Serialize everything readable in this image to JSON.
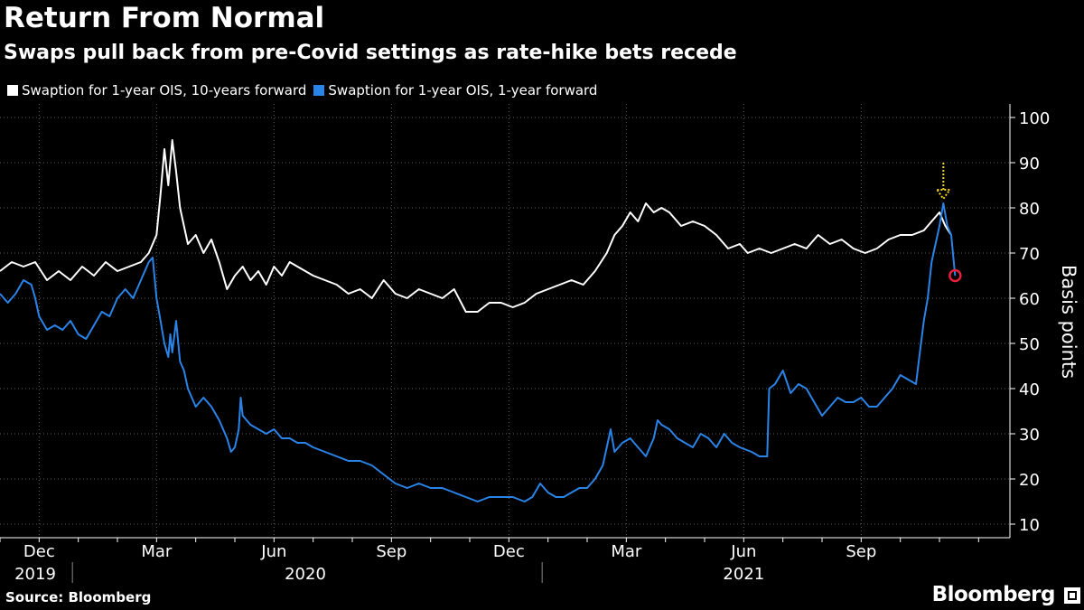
{
  "title": "Return From Normal",
  "subtitle": "Swaps pull back from pre-Covid settings as rate-hike bets recede",
  "source": "Source: Bloomberg",
  "brand": "Bloomberg",
  "colors": {
    "series1": "#ffffff",
    "series2": "#2a84e8",
    "marker": "#e8203a",
    "arrow": "#f5d21c"
  },
  "chart_data": {
    "type": "line",
    "title": "Return From Normal",
    "subtitle": "Swaps pull back from pre-Covid settings as rate-hike bets recede",
    "ylabel": "Basis points",
    "xlabel": "",
    "ylim": [
      10,
      100
    ],
    "yticks": [
      10,
      20,
      30,
      40,
      50,
      60,
      70,
      80,
      90,
      100
    ],
    "xlim": [
      0,
      25.8
    ],
    "xticks": [
      {
        "x": 1.0,
        "label": "Dec"
      },
      {
        "x": 4.0,
        "label": "Mar"
      },
      {
        "x": 7.0,
        "label": "Jun"
      },
      {
        "x": 10.0,
        "label": "Sep"
      },
      {
        "x": 13.0,
        "label": "Dec"
      },
      {
        "x": 16.0,
        "label": "Mar"
      },
      {
        "x": 19.0,
        "label": "Jun"
      },
      {
        "x": 22.0,
        "label": "Sep"
      }
    ],
    "year_labels": [
      {
        "x": 0.9,
        "label": "2019"
      },
      {
        "x": 7.8,
        "label": "2020"
      },
      {
        "x": 19.0,
        "label": "2021"
      }
    ],
    "year_dividers": [
      1.85,
      13.85
    ],
    "grid": true,
    "legend_position": "top-left",
    "series": [
      {
        "name": "Swaption for 1-year OIS, 10-years forward",
        "points": [
          [
            0,
            66
          ],
          [
            0.3,
            68
          ],
          [
            0.6,
            67
          ],
          [
            0.9,
            68
          ],
          [
            1.2,
            64
          ],
          [
            1.5,
            66
          ],
          [
            1.8,
            64
          ],
          [
            2.1,
            67
          ],
          [
            2.4,
            65
          ],
          [
            2.7,
            68
          ],
          [
            3.0,
            66
          ],
          [
            3.3,
            67
          ],
          [
            3.6,
            68
          ],
          [
            3.8,
            70
          ],
          [
            4.0,
            74
          ],
          [
            4.1,
            83
          ],
          [
            4.2,
            93
          ],
          [
            4.3,
            85
          ],
          [
            4.4,
            95
          ],
          [
            4.5,
            88
          ],
          [
            4.6,
            80
          ],
          [
            4.8,
            72
          ],
          [
            5.0,
            74
          ],
          [
            5.2,
            70
          ],
          [
            5.4,
            73
          ],
          [
            5.6,
            68
          ],
          [
            5.8,
            62
          ],
          [
            6.0,
            65
          ],
          [
            6.2,
            67
          ],
          [
            6.4,
            64
          ],
          [
            6.6,
            66
          ],
          [
            6.8,
            63
          ],
          [
            7.0,
            67
          ],
          [
            7.2,
            65
          ],
          [
            7.4,
            68
          ],
          [
            7.6,
            67
          ],
          [
            7.8,
            66
          ],
          [
            8.0,
            65
          ],
          [
            8.3,
            64
          ],
          [
            8.6,
            63
          ],
          [
            8.9,
            61
          ],
          [
            9.2,
            62
          ],
          [
            9.5,
            60
          ],
          [
            9.8,
            64
          ],
          [
            10.1,
            61
          ],
          [
            10.4,
            60
          ],
          [
            10.7,
            62
          ],
          [
            11.0,
            61
          ],
          [
            11.3,
            60
          ],
          [
            11.6,
            62
          ],
          [
            11.9,
            57
          ],
          [
            12.2,
            57
          ],
          [
            12.5,
            59
          ],
          [
            12.8,
            59
          ],
          [
            13.1,
            58
          ],
          [
            13.4,
            59
          ],
          [
            13.7,
            61
          ],
          [
            14.0,
            62
          ],
          [
            14.3,
            63
          ],
          [
            14.6,
            64
          ],
          [
            14.9,
            63
          ],
          [
            15.2,
            66
          ],
          [
            15.5,
            70
          ],
          [
            15.7,
            74
          ],
          [
            15.9,
            76
          ],
          [
            16.1,
            79
          ],
          [
            16.3,
            77
          ],
          [
            16.5,
            81
          ],
          [
            16.7,
            79
          ],
          [
            16.9,
            80
          ],
          [
            17.1,
            79
          ],
          [
            17.4,
            76
          ],
          [
            17.7,
            77
          ],
          [
            18.0,
            76
          ],
          [
            18.3,
            74
          ],
          [
            18.6,
            71
          ],
          [
            18.9,
            72
          ],
          [
            19.1,
            70
          ],
          [
            19.4,
            71
          ],
          [
            19.7,
            70
          ],
          [
            20.0,
            71
          ],
          [
            20.3,
            72
          ],
          [
            20.6,
            71
          ],
          [
            20.9,
            74
          ],
          [
            21.2,
            72
          ],
          [
            21.5,
            73
          ],
          [
            21.8,
            71
          ],
          [
            22.1,
            70
          ],
          [
            22.4,
            71
          ],
          [
            22.7,
            73
          ],
          [
            23.0,
            74
          ],
          [
            23.3,
            74
          ],
          [
            23.6,
            75
          ],
          [
            23.8,
            77
          ],
          [
            24.0,
            79
          ],
          [
            24.15,
            76
          ],
          [
            24.3,
            74
          ]
        ]
      },
      {
        "name": "Swaption for 1-year OIS, 1-year forward",
        "points": [
          [
            0,
            61
          ],
          [
            0.2,
            59
          ],
          [
            0.4,
            61
          ],
          [
            0.6,
            64
          ],
          [
            0.8,
            63
          ],
          [
            0.9,
            60
          ],
          [
            1.0,
            56
          ],
          [
            1.2,
            53
          ],
          [
            1.4,
            54
          ],
          [
            1.6,
            53
          ],
          [
            1.8,
            55
          ],
          [
            2.0,
            52
          ],
          [
            2.2,
            51
          ],
          [
            2.4,
            54
          ],
          [
            2.6,
            57
          ],
          [
            2.8,
            56
          ],
          [
            3.0,
            60
          ],
          [
            3.2,
            62
          ],
          [
            3.4,
            60
          ],
          [
            3.6,
            64
          ],
          [
            3.8,
            68
          ],
          [
            3.9,
            69
          ],
          [
            4.0,
            60
          ],
          [
            4.1,
            55
          ],
          [
            4.2,
            50
          ],
          [
            4.3,
            47
          ],
          [
            4.35,
            52
          ],
          [
            4.4,
            48
          ],
          [
            4.5,
            55
          ],
          [
            4.6,
            46
          ],
          [
            4.7,
            44
          ],
          [
            4.8,
            40
          ],
          [
            5.0,
            36
          ],
          [
            5.2,
            38
          ],
          [
            5.4,
            36
          ],
          [
            5.6,
            33
          ],
          [
            5.8,
            29
          ],
          [
            5.9,
            26
          ],
          [
            6.0,
            27
          ],
          [
            6.1,
            31
          ],
          [
            6.15,
            38
          ],
          [
            6.2,
            34
          ],
          [
            6.4,
            32
          ],
          [
            6.6,
            31
          ],
          [
            6.8,
            30
          ],
          [
            7.0,
            31
          ],
          [
            7.2,
            29
          ],
          [
            7.4,
            29
          ],
          [
            7.6,
            28
          ],
          [
            7.8,
            28
          ],
          [
            8.0,
            27
          ],
          [
            8.3,
            26
          ],
          [
            8.6,
            25
          ],
          [
            8.9,
            24
          ],
          [
            9.2,
            24
          ],
          [
            9.5,
            23
          ],
          [
            9.8,
            21
          ],
          [
            10.1,
            19
          ],
          [
            10.4,
            18
          ],
          [
            10.7,
            19
          ],
          [
            11.0,
            18
          ],
          [
            11.3,
            18
          ],
          [
            11.6,
            17
          ],
          [
            11.9,
            16
          ],
          [
            12.2,
            15
          ],
          [
            12.5,
            16
          ],
          [
            12.8,
            16
          ],
          [
            13.1,
            16
          ],
          [
            13.4,
            15
          ],
          [
            13.6,
            16
          ],
          [
            13.8,
            19
          ],
          [
            14.0,
            17
          ],
          [
            14.2,
            16
          ],
          [
            14.4,
            16
          ],
          [
            14.6,
            17
          ],
          [
            14.8,
            18
          ],
          [
            15.0,
            18
          ],
          [
            15.2,
            20
          ],
          [
            15.4,
            23
          ],
          [
            15.5,
            27
          ],
          [
            15.6,
            31
          ],
          [
            15.7,
            26
          ],
          [
            15.9,
            28
          ],
          [
            16.1,
            29
          ],
          [
            16.3,
            27
          ],
          [
            16.5,
            25
          ],
          [
            16.7,
            29
          ],
          [
            16.8,
            33
          ],
          [
            16.9,
            32
          ],
          [
            17.1,
            31
          ],
          [
            17.3,
            29
          ],
          [
            17.5,
            28
          ],
          [
            17.7,
            27
          ],
          [
            17.9,
            30
          ],
          [
            18.1,
            29
          ],
          [
            18.3,
            27
          ],
          [
            18.5,
            30
          ],
          [
            18.7,
            28
          ],
          [
            18.9,
            27
          ],
          [
            19.2,
            26
          ],
          [
            19.4,
            25
          ],
          [
            19.6,
            25
          ],
          [
            19.65,
            40
          ],
          [
            19.8,
            41
          ],
          [
            20.0,
            44
          ],
          [
            20.2,
            39
          ],
          [
            20.4,
            41
          ],
          [
            20.6,
            40
          ],
          [
            20.8,
            37
          ],
          [
            21.0,
            34
          ],
          [
            21.2,
            36
          ],
          [
            21.4,
            38
          ],
          [
            21.6,
            37
          ],
          [
            21.8,
            37
          ],
          [
            22.0,
            38
          ],
          [
            22.2,
            36
          ],
          [
            22.4,
            36
          ],
          [
            22.6,
            38
          ],
          [
            22.8,
            40
          ],
          [
            23.0,
            43
          ],
          [
            23.2,
            42
          ],
          [
            23.4,
            41
          ],
          [
            23.5,
            48
          ],
          [
            23.6,
            55
          ],
          [
            23.7,
            60
          ],
          [
            23.8,
            68
          ],
          [
            24.0,
            76
          ],
          [
            24.1,
            81
          ],
          [
            24.2,
            76
          ],
          [
            24.3,
            74
          ],
          [
            24.4,
            65
          ]
        ]
      }
    ],
    "annotations": [
      {
        "type": "arrow",
        "x": 24.1,
        "y_from": 90,
        "y_to": 82
      },
      {
        "type": "circle-marker",
        "x": 24.4,
        "y": 65
      }
    ]
  }
}
